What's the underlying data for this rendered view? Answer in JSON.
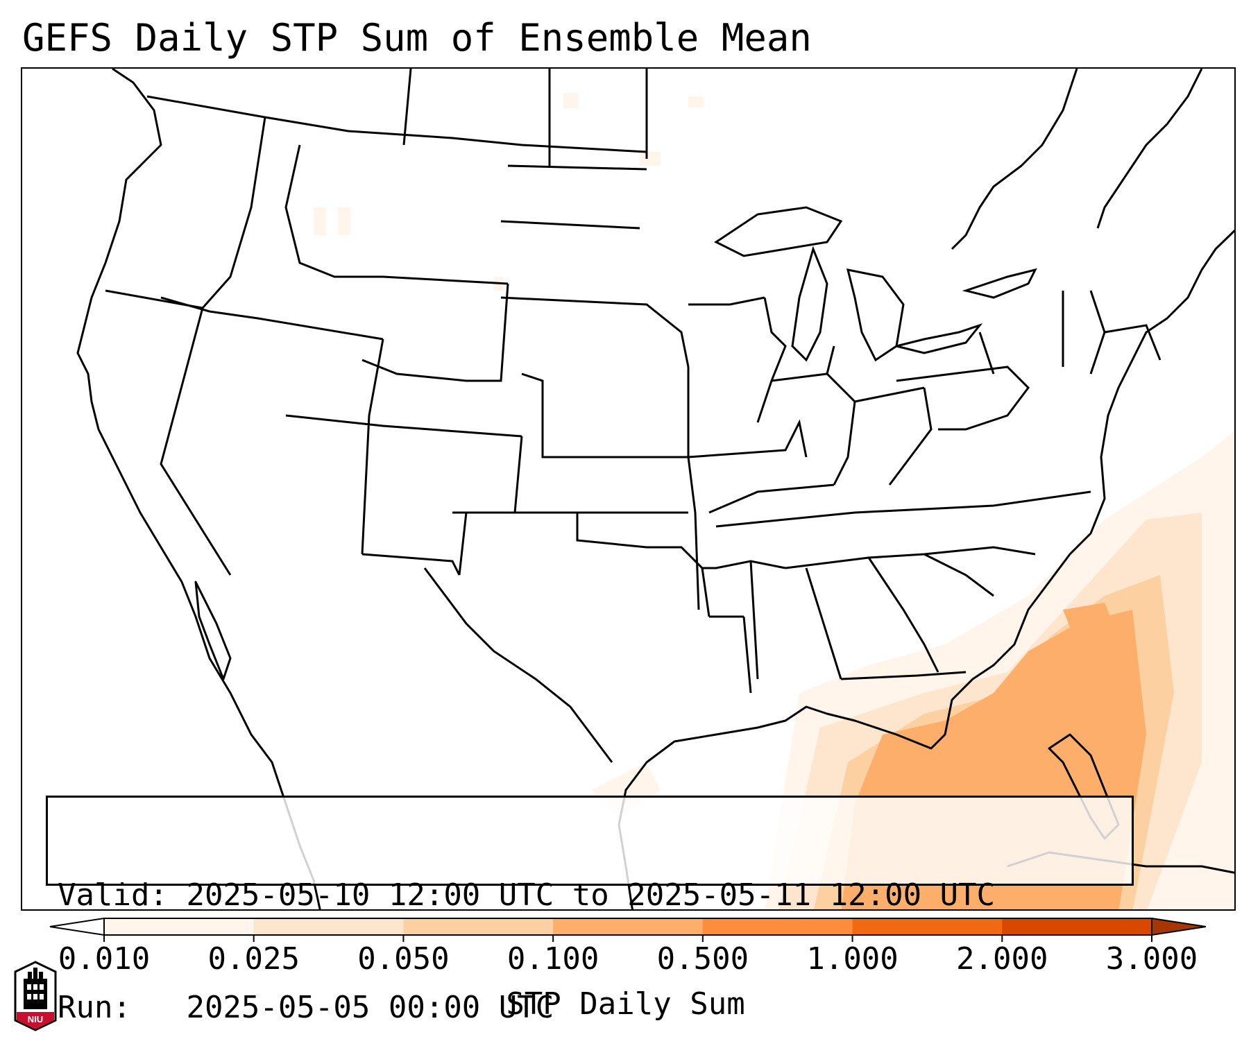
{
  "title": "GEFS Daily STP Sum of Ensemble Mean",
  "info": {
    "valid_label": "Valid:",
    "valid_value": "2025-05-10 12:00 UTC to 2025-05-11 12:00 UTC",
    "run_label": "Run:",
    "run_value": "2025-05-05 00:00 UTC"
  },
  "colorbar": {
    "label": "STP Daily Sum",
    "ticks": [
      "0.010",
      "0.025",
      "0.050",
      "0.100",
      "0.500",
      "1.000",
      "2.000",
      "3.000"
    ],
    "colors": [
      "#fff5eb",
      "#fee6ce",
      "#fdd0a2",
      "#fdae6b",
      "#fd8d3c",
      "#f16913",
      "#d94801",
      "#a63603"
    ],
    "extend": "both"
  },
  "map": {
    "region": "CONUS",
    "shading_colors": [
      "#fff5eb",
      "#fee6ce",
      "#fdd0a2",
      "#fdae6b"
    ]
  },
  "logo": {
    "text": "NIU",
    "color": "#c8102e"
  }
}
